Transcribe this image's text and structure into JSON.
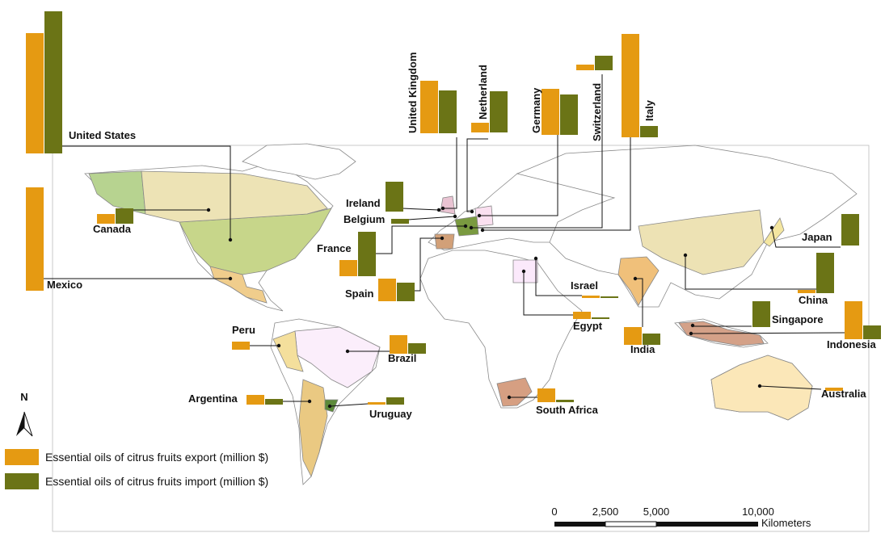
{
  "legend": [
    {
      "name": "Essential oils of citrus fruits export (million $)",
      "color": "#e59a12"
    },
    {
      "name": "Essential oils of citrus fruits import (million $)",
      "color": "#6b7416"
    }
  ],
  "north": "N",
  "scale_bar": {
    "labels": [
      "0",
      "2,500",
      "5,000",
      "10,000"
    ],
    "unit": "Kilometers"
  },
  "countries": [
    {
      "name": "United States",
      "export": 149,
      "import": 176
    },
    {
      "name": "Mexico",
      "export": 128,
      "import": 0
    },
    {
      "name": "Canada",
      "export": 12,
      "import": 19
    },
    {
      "name": "United Kingdom",
      "export": 65,
      "import": 53
    },
    {
      "name": "Netherland",
      "export": 12,
      "import": 51
    },
    {
      "name": "Germany",
      "export": 57,
      "import": 50
    },
    {
      "name": "Switzerland",
      "export": 7,
      "import": 18
    },
    {
      "name": "Italy",
      "export": 128,
      "import": 14
    },
    {
      "name": "Ireland",
      "export": 0,
      "import": 37
    },
    {
      "name": "Belgium",
      "export": 0,
      "import": 6
    },
    {
      "name": "France",
      "export": 20,
      "import": 55
    },
    {
      "name": "Spain",
      "export": 28,
      "import": 23
    },
    {
      "name": "Israel",
      "export": 3,
      "import": 2
    },
    {
      "name": "Egypt",
      "export": 9,
      "import": 2
    },
    {
      "name": "India",
      "export": 22,
      "import": 14
    },
    {
      "name": "China",
      "export": 4,
      "import": 50
    },
    {
      "name": "Japan",
      "export": 0,
      "import": 39
    },
    {
      "name": "Singapore",
      "export": 0,
      "import": 32
    },
    {
      "name": "Indonesia",
      "export": 47,
      "import": 17
    },
    {
      "name": "Australia",
      "export": 4,
      "import": 0
    },
    {
      "name": "South Africa",
      "export": 17,
      "import": 3
    },
    {
      "name": "Brazil",
      "export": 23,
      "import": 13
    },
    {
      "name": "Peru",
      "export": 10,
      "import": 0
    },
    {
      "name": "Argentina",
      "export": 12,
      "import": 7
    },
    {
      "name": "Uruguay",
      "export": 3,
      "import": 9
    }
  ]
}
